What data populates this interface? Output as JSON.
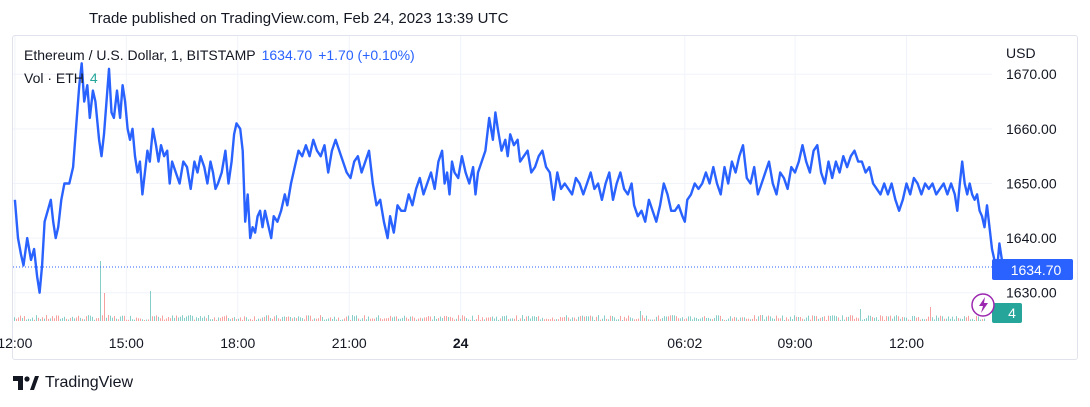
{
  "header": {
    "published": "Trade published on TradingView.com, Feb 24, 2023 13:39 UTC"
  },
  "legend": {
    "symbol": "Ethereum / U.S. Dollar, 1, BITSTAMP",
    "price": "1634.70",
    "change": "+1.70 (+0.10%)",
    "volume_label": "Vol · ETH",
    "volume_value": "4"
  },
  "axis": {
    "currency": "USD"
  },
  "badges": {
    "price": "1634.70",
    "volume": "4"
  },
  "footer": {
    "brand": "TradingView"
  },
  "colors": {
    "line": "#2962ff",
    "vol_up": "#26a69a",
    "vol_down": "#ef5350",
    "badge_vol": "#26a69a"
  },
  "chart_data": {
    "type": "line",
    "ylim": [
      1625,
      1677
    ],
    "yticks": [
      {
        "value": 1630,
        "label": "1630.00"
      },
      {
        "value": 1640,
        "label": "1640.00"
      },
      {
        "value": 1650,
        "label": "1650.00"
      },
      {
        "value": 1660,
        "label": "1660.00"
      },
      {
        "value": 1670,
        "label": "1670.00"
      }
    ],
    "xticks": [
      {
        "x": 0,
        "label": "12:00"
      },
      {
        "x": 180,
        "label": "15:00"
      },
      {
        "x": 360,
        "label": "18:00"
      },
      {
        "x": 540,
        "label": "21:00"
      },
      {
        "x": 720,
        "label": "24",
        "bold": true
      },
      {
        "x": 1082,
        "label": "06:02"
      },
      {
        "x": 1260,
        "label": "09:00"
      },
      {
        "x": 1440,
        "label": "12:00"
      }
    ],
    "x_range": [
      -3,
      1570
    ],
    "last_price": 1634.7,
    "series": [
      {
        "points": [
          [
            0,
            1647
          ],
          [
            5,
            1640
          ],
          [
            10,
            1637
          ],
          [
            14,
            1635
          ],
          [
            20,
            1640
          ],
          [
            26,
            1636
          ],
          [
            31,
            1638
          ],
          [
            36,
            1633
          ],
          [
            40,
            1630
          ],
          [
            44,
            1635
          ],
          [
            48,
            1643
          ],
          [
            53,
            1645
          ],
          [
            58,
            1647
          ],
          [
            62,
            1643
          ],
          [
            66,
            1640
          ],
          [
            70,
            1642
          ],
          [
            75,
            1647
          ],
          [
            80,
            1650
          ],
          [
            88,
            1650
          ],
          [
            94,
            1653
          ],
          [
            100,
            1662
          ],
          [
            104,
            1668
          ],
          [
            108,
            1672
          ],
          [
            112,
            1665
          ],
          [
            117,
            1668
          ],
          [
            121,
            1662
          ],
          [
            126,
            1667
          ],
          [
            130,
            1665
          ],
          [
            136,
            1658
          ],
          [
            140,
            1655
          ],
          [
            144,
            1659
          ],
          [
            148,
            1665
          ],
          [
            152,
            1671
          ],
          [
            156,
            1663
          ],
          [
            160,
            1662
          ],
          [
            165,
            1667
          ],
          [
            170,
            1662
          ],
          [
            174,
            1668
          ],
          [
            178,
            1665
          ],
          [
            182,
            1660
          ],
          [
            186,
            1658
          ],
          [
            190,
            1660
          ],
          [
            194,
            1655
          ],
          [
            198,
            1652
          ],
          [
            202,
            1654
          ],
          [
            206,
            1648
          ],
          [
            210,
            1652
          ],
          [
            214,
            1656
          ],
          [
            218,
            1654
          ],
          [
            223,
            1660
          ],
          [
            228,
            1657
          ],
          [
            232,
            1654
          ],
          [
            236,
            1657
          ],
          [
            241,
            1655
          ],
          [
            246,
            1656
          ],
          [
            250,
            1650
          ],
          [
            254,
            1654
          ],
          [
            260,
            1652
          ],
          [
            266,
            1650
          ],
          [
            272,
            1654
          ],
          [
            278,
            1653
          ],
          [
            284,
            1649
          ],
          [
            290,
            1654
          ],
          [
            295,
            1652
          ],
          [
            300,
            1655
          ],
          [
            306,
            1653
          ],
          [
            311,
            1650
          ],
          [
            316,
            1654
          ],
          [
            320,
            1652
          ],
          [
            324,
            1649
          ],
          [
            328,
            1650
          ],
          [
            334,
            1652
          ],
          [
            340,
            1656
          ],
          [
            345,
            1650
          ],
          [
            350,
            1654
          ],
          [
            354,
            1659
          ],
          [
            358,
            1661
          ],
          [
            364,
            1660
          ],
          [
            368,
            1656
          ],
          [
            372,
            1643
          ],
          [
            376,
            1648
          ],
          [
            380,
            1640
          ],
          [
            384,
            1642
          ],
          [
            388,
            1641
          ],
          [
            392,
            1644
          ],
          [
            396,
            1645
          ],
          [
            400,
            1642
          ],
          [
            404,
            1645
          ],
          [
            410,
            1642
          ],
          [
            414,
            1640
          ],
          [
            418,
            1644
          ],
          [
            424,
            1643
          ],
          [
            430,
            1645
          ],
          [
            436,
            1648
          ],
          [
            440,
            1646
          ],
          [
            446,
            1650
          ],
          [
            452,
            1653
          ],
          [
            458,
            1656
          ],
          [
            464,
            1655
          ],
          [
            470,
            1657
          ],
          [
            476,
            1655
          ],
          [
            482,
            1658
          ],
          [
            488,
            1656
          ],
          [
            494,
            1655
          ],
          [
            500,
            1657
          ],
          [
            506,
            1652
          ],
          [
            512,
            1656
          ],
          [
            518,
            1658
          ],
          [
            524,
            1656
          ],
          [
            530,
            1654
          ],
          [
            536,
            1652
          ],
          [
            542,
            1651
          ],
          [
            548,
            1654
          ],
          [
            554,
            1655
          ],
          [
            560,
            1652
          ],
          [
            566,
            1654
          ],
          [
            572,
            1656
          ],
          [
            578,
            1650
          ],
          [
            584,
            1646
          ],
          [
            590,
            1647
          ],
          [
            596,
            1643
          ],
          [
            602,
            1640
          ],
          [
            606,
            1644
          ],
          [
            612,
            1641
          ],
          [
            618,
            1646
          ],
          [
            624,
            1645
          ],
          [
            630,
            1645
          ],
          [
            636,
            1648
          ],
          [
            642,
            1646
          ],
          [
            648,
            1649
          ],
          [
            654,
            1651
          ],
          [
            660,
            1648
          ],
          [
            666,
            1650
          ],
          [
            672,
            1652
          ],
          [
            678,
            1649
          ],
          [
            684,
            1654
          ],
          [
            690,
            1656
          ],
          [
            694,
            1650
          ],
          [
            698,
            1652
          ],
          [
            702,
            1648
          ],
          [
            706,
            1654
          ],
          [
            710,
            1652
          ],
          [
            716,
            1651
          ],
          [
            722,
            1655
          ],
          [
            728,
            1652
          ],
          [
            734,
            1650
          ],
          [
            740,
            1653
          ],
          [
            744,
            1648
          ],
          [
            748,
            1652
          ],
          [
            754,
            1654
          ],
          [
            760,
            1656
          ],
          [
            766,
            1662
          ],
          [
            772,
            1658
          ],
          [
            776,
            1663
          ],
          [
            780,
            1660
          ],
          [
            786,
            1656
          ],
          [
            792,
            1658
          ],
          [
            796,
            1655
          ],
          [
            800,
            1659
          ],
          [
            806,
            1657
          ],
          [
            812,
            1658
          ],
          [
            816,
            1654
          ],
          [
            822,
            1655
          ],
          [
            828,
            1656
          ],
          [
            834,
            1652
          ],
          [
            840,
            1653
          ],
          [
            846,
            1655
          ],
          [
            852,
            1656
          ],
          [
            858,
            1653
          ],
          [
            864,
            1652
          ],
          [
            870,
            1647
          ],
          [
            876,
            1652
          ],
          [
            882,
            1649
          ],
          [
            888,
            1650
          ],
          [
            894,
            1649
          ],
          [
            900,
            1648
          ],
          [
            906,
            1651
          ],
          [
            912,
            1650
          ],
          [
            918,
            1648
          ],
          [
            924,
            1650
          ],
          [
            930,
            1652
          ],
          [
            936,
            1649
          ],
          [
            942,
            1650
          ],
          [
            948,
            1647
          ],
          [
            954,
            1650
          ],
          [
            960,
            1652
          ],
          [
            966,
            1647
          ],
          [
            972,
            1650
          ],
          [
            978,
            1652
          ],
          [
            984,
            1649
          ],
          [
            990,
            1648
          ],
          [
            996,
            1650
          ],
          [
            1000,
            1646
          ],
          [
            1006,
            1644
          ],
          [
            1012,
            1645
          ],
          [
            1018,
            1643
          ],
          [
            1024,
            1647
          ],
          [
            1030,
            1645
          ],
          [
            1036,
            1643
          ],
          [
            1042,
            1646
          ],
          [
            1048,
            1650
          ],
          [
            1054,
            1648
          ],
          [
            1060,
            1645
          ],
          [
            1066,
            1645
          ],
          [
            1072,
            1646
          ],
          [
            1078,
            1644
          ],
          [
            1082,
            1643
          ],
          [
            1086,
            1647
          ],
          [
            1092,
            1648
          ],
          [
            1098,
            1650
          ],
          [
            1104,
            1649
          ],
          [
            1110,
            1650
          ],
          [
            1116,
            1652
          ],
          [
            1122,
            1650
          ],
          [
            1128,
            1653
          ],
          [
            1134,
            1650
          ],
          [
            1140,
            1648
          ],
          [
            1146,
            1653
          ],
          [
            1152,
            1650
          ],
          [
            1158,
            1654
          ],
          [
            1164,
            1652
          ],
          [
            1170,
            1655
          ],
          [
            1176,
            1657
          ],
          [
            1182,
            1651
          ],
          [
            1188,
            1650
          ],
          [
            1194,
            1653
          ],
          [
            1200,
            1648
          ],
          [
            1206,
            1650
          ],
          [
            1212,
            1652
          ],
          [
            1218,
            1654
          ],
          [
            1224,
            1650
          ],
          [
            1230,
            1648
          ],
          [
            1236,
            1652
          ],
          [
            1242,
            1651
          ],
          [
            1248,
            1649
          ],
          [
            1254,
            1653
          ],
          [
            1260,
            1652
          ],
          [
            1266,
            1654
          ],
          [
            1272,
            1657
          ],
          [
            1278,
            1654
          ],
          [
            1284,
            1652
          ],
          [
            1290,
            1656
          ],
          [
            1296,
            1657
          ],
          [
            1302,
            1652
          ],
          [
            1308,
            1650
          ],
          [
            1314,
            1654
          ],
          [
            1320,
            1651
          ],
          [
            1326,
            1654
          ],
          [
            1332,
            1652
          ],
          [
            1338,
            1655
          ],
          [
            1344,
            1653
          ],
          [
            1350,
            1655
          ],
          [
            1356,
            1656
          ],
          [
            1362,
            1654
          ],
          [
            1368,
            1654
          ],
          [
            1374,
            1652
          ],
          [
            1380,
            1653
          ],
          [
            1386,
            1650
          ],
          [
            1392,
            1649
          ],
          [
            1398,
            1648
          ],
          [
            1404,
            1650
          ],
          [
            1410,
            1648
          ],
          [
            1416,
            1650
          ],
          [
            1422,
            1647
          ],
          [
            1428,
            1645
          ],
          [
            1434,
            1647
          ],
          [
            1440,
            1650
          ],
          [
            1446,
            1648
          ],
          [
            1452,
            1651
          ],
          [
            1458,
            1650
          ],
          [
            1464,
            1648
          ],
          [
            1470,
            1650
          ],
          [
            1476,
            1649
          ],
          [
            1482,
            1650
          ],
          [
            1488,
            1648
          ],
          [
            1494,
            1649
          ],
          [
            1500,
            1650
          ],
          [
            1506,
            1648
          ],
          [
            1512,
            1650
          ],
          [
            1518,
            1648
          ],
          [
            1522,
            1645
          ],
          [
            1526,
            1650
          ],
          [
            1530,
            1654
          ],
          [
            1534,
            1650
          ],
          [
            1538,
            1648
          ],
          [
            1542,
            1650
          ],
          [
            1546,
            1648
          ],
          [
            1550,
            1647
          ],
          [
            1554,
            1648
          ],
          [
            1558,
            1645
          ],
          [
            1562,
            1644
          ],
          [
            1566,
            1642
          ],
          [
            1570,
            1646
          ],
          [
            1574,
            1642
          ],
          [
            1578,
            1638
          ],
          [
            1582,
            1636
          ],
          [
            1586,
            1634
          ],
          [
            1590,
            1639
          ],
          [
            1594,
            1636
          ]
        ]
      }
    ]
  }
}
